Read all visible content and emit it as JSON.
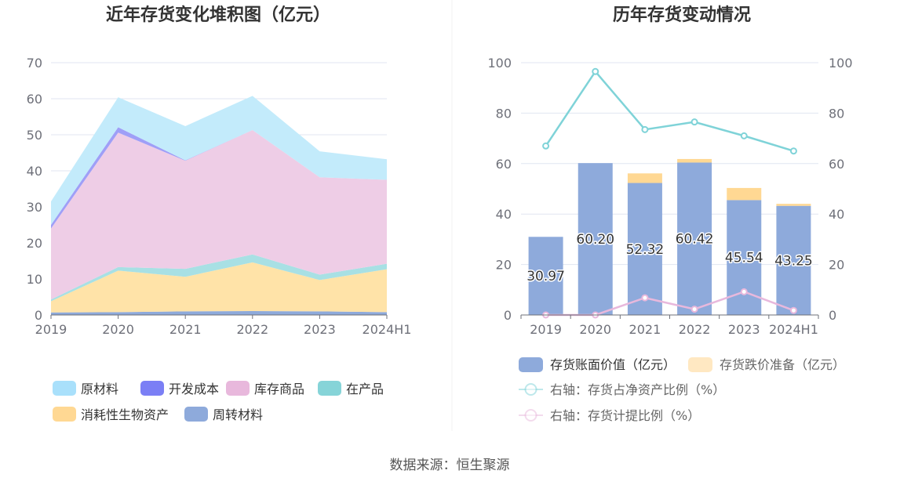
{
  "source_label": "数据来源：恒生聚源",
  "chart_data": [
    {
      "type": "area",
      "stacked": true,
      "title": "近年存货变化堆积图（亿元）",
      "x": [
        "2019",
        "2020",
        "2021",
        "2022",
        "2023",
        "2024H1"
      ],
      "ylim": [
        0,
        70
      ],
      "yticks": [
        0,
        10,
        20,
        30,
        40,
        50,
        60,
        70
      ],
      "grid": true,
      "legend_position": "bottom",
      "series": [
        {
          "name": "周转材料",
          "color": "#8eaadb",
          "values": [
            0.7,
            0.8,
            1.0,
            1.1,
            1.0,
            0.8
          ]
        },
        {
          "name": "消耗性生物资产",
          "color": "#ffe3a8",
          "values": [
            3.1,
            11.5,
            9.6,
            13.5,
            8.7,
            11.9
          ]
        },
        {
          "name": "在产品",
          "color": "#a8e0e4",
          "values": [
            0.5,
            1.0,
            2.2,
            2.2,
            1.5,
            1.5
          ]
        },
        {
          "name": "库存商品",
          "color": "#eecde6",
          "values": [
            19.7,
            37.3,
            30.0,
            34.5,
            27.0,
            23.3
          ]
        },
        {
          "name": "开发成本",
          "color": "#9f9ff7",
          "values": [
            1.0,
            1.5,
            0.1,
            0.0,
            0.0,
            0.0
          ]
        },
        {
          "name": "原材料",
          "color": "#c3ebfb",
          "values": [
            6.5,
            8.3,
            9.5,
            9.5,
            7.2,
            5.7
          ]
        }
      ],
      "legend": [
        {
          "name": "原材料",
          "color": "#a9e0fb"
        },
        {
          "name": "开发成本",
          "color": "#7b7ff5"
        },
        {
          "name": "库存商品",
          "color": "#e8b8dc"
        },
        {
          "name": "在产品",
          "color": "#86d4d8"
        },
        {
          "name": "消耗性生物资产",
          "color": "#ffd893"
        },
        {
          "name": "周转材料",
          "color": "#8eaadb"
        }
      ]
    },
    {
      "type": "bar",
      "stacked": true,
      "title": "历年存货变动情况",
      "categories": [
        "2019",
        "2020",
        "2021",
        "2022",
        "2023",
        "2024H1"
      ],
      "ylim_left": [
        0,
        100
      ],
      "yticks_left": [
        0,
        20,
        40,
        60,
        80,
        100
      ],
      "ylim_right": [
        0,
        100
      ],
      "yticks_right": [
        0,
        20,
        40,
        60,
        80,
        100
      ],
      "grid": true,
      "legend_position": "bottom",
      "series": [
        {
          "name": "存货账面价值（亿元）",
          "axis": "left",
          "color": "#8eaadb",
          "values": [
            30.97,
            60.2,
            52.32,
            60.42,
            45.54,
            43.25
          ],
          "labels": [
            "30.97",
            "60.20",
            "52.32",
            "60.42",
            "45.54",
            "43.25"
          ]
        },
        {
          "name": "存货跌价准备（亿元）",
          "axis": "left",
          "color": "#ffd893",
          "values": [
            0.0,
            0.0,
            3.8,
            1.4,
            4.8,
            0.8
          ]
        },
        {
          "name": "右轴：存货占净资产比例（%）",
          "axis": "right",
          "type": "line",
          "color": "#7fd3d8",
          "values": [
            67.0,
            96.5,
            73.5,
            76.5,
            71.0,
            65.0
          ]
        },
        {
          "name": "右轴：存货计提比例（%）",
          "axis": "right",
          "type": "line",
          "color": "#e8b8dc",
          "values": [
            0.0,
            0.0,
            6.8,
            2.3,
            9.2,
            1.8
          ]
        }
      ]
    }
  ]
}
